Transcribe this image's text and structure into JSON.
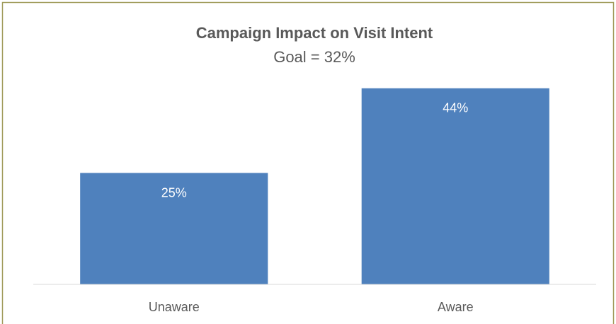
{
  "chart_data": {
    "type": "bar",
    "title": "Campaign Impact on Visit Intent",
    "subtitle": "Goal = 32%",
    "categories": [
      "Unaware",
      "Aware"
    ],
    "values": [
      25,
      44
    ],
    "value_labels": [
      "25%",
      "44%"
    ],
    "color": "#4f81bd",
    "ylim": [
      0,
      50
    ]
  }
}
